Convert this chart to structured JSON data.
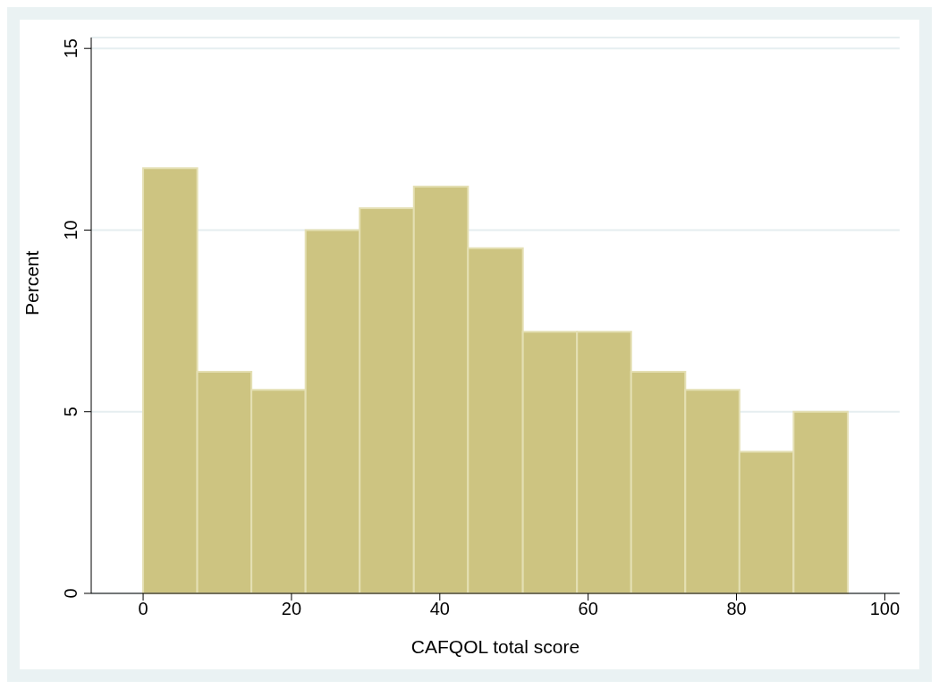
{
  "chart_data": {
    "type": "histogram",
    "xlabel": "CAFQOL total score",
    "ylabel": "Percent",
    "bins": [
      0,
      7.3,
      14.6,
      21.9,
      29.2,
      36.5,
      43.8,
      51.2,
      58.5,
      65.8,
      73.1,
      80.4,
      87.7,
      95
    ],
    "values": [
      11.7,
      6.1,
      5.6,
      10.0,
      10.6,
      11.2,
      9.5,
      7.2,
      7.2,
      6.1,
      5.6,
      3.9,
      5.0
    ],
    "color": "#cdc481",
    "xlim": [
      -7,
      102
    ],
    "xticks": [
      0,
      20,
      40,
      60,
      80,
      100
    ],
    "ylim": [
      0,
      15.3
    ],
    "yticks": [
      0,
      5,
      10,
      15
    ],
    "grid": "y"
  }
}
